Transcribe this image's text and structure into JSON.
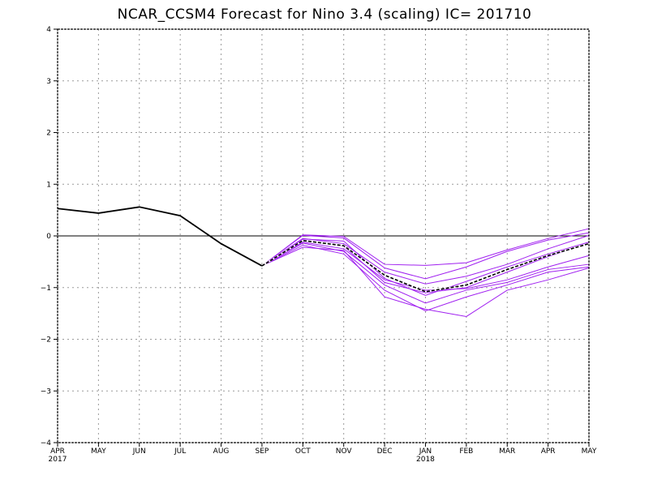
{
  "chart_data": {
    "type": "line",
    "title": "NCAR_CCSM4 Forecast for Nino 3.4 (scaling)  IC= 201710",
    "xlabel": "",
    "ylabel": "",
    "ylim": [
      -4,
      4
    ],
    "yticks": [
      "4",
      "3",
      "2",
      "1",
      "0",
      "−1",
      "−2",
      "−3",
      "−4"
    ],
    "categories": [
      "APR",
      "MAY",
      "JUN",
      "JUL",
      "AUG",
      "SEP",
      "OCT",
      "NOV",
      "DEC",
      "JAN",
      "FEB",
      "MAR",
      "APR",
      "MAY"
    ],
    "year_labels": [
      {
        "index": 0,
        "text": "2017"
      },
      {
        "index": 9,
        "text": "2018"
      }
    ],
    "grid": true,
    "zero_line": true,
    "observed": {
      "start_index": 0,
      "color": "#000000",
      "values": [
        0.53,
        0.44,
        0.56,
        0.39,
        -0.15,
        -0.58
      ]
    },
    "ensemble_mean": {
      "start_index": 5,
      "color": "#000000",
      "style": "dashed",
      "values": [
        -0.58,
        -0.09,
        -0.19,
        -0.76,
        -1.08,
        -0.95,
        -0.65,
        -0.38,
        -0.15
      ]
    },
    "members": {
      "start_index": 5,
      "color": "#a020f0",
      "series": [
        {
          "values": [
            -0.58,
            0.02,
            -0.01,
            -0.55,
            -0.57,
            -0.52,
            -0.27,
            -0.05,
            0.14
          ]
        },
        {
          "values": [
            -0.58,
            0.01,
            -0.04,
            -0.62,
            -0.83,
            -0.6,
            -0.3,
            -0.08,
            0.06
          ]
        },
        {
          "values": [
            -0.58,
            -0.05,
            -0.15,
            -0.7,
            -0.93,
            -0.78,
            -0.55,
            -0.25,
            0.01
          ]
        },
        {
          "values": [
            -0.58,
            -0.06,
            -0.1,
            -0.82,
            -1.15,
            -0.88,
            -0.6,
            -0.35,
            -0.12
          ]
        },
        {
          "values": [
            -0.58,
            -0.08,
            -0.2,
            -0.9,
            -1.1,
            -1.0,
            -0.7,
            -0.4,
            -0.14
          ]
        },
        {
          "values": [
            -0.58,
            -0.12,
            -0.25,
            -0.85,
            -1.05,
            -1.02,
            -0.85,
            -0.6,
            -0.38
          ]
        },
        {
          "values": [
            -0.58,
            -0.14,
            -0.3,
            -0.95,
            -1.3,
            -1.05,
            -0.9,
            -0.65,
            -0.55
          ]
        },
        {
          "values": [
            -0.58,
            -0.18,
            -0.35,
            -1.05,
            -1.45,
            -1.18,
            -0.95,
            -0.7,
            -0.6
          ]
        },
        {
          "values": [
            -0.58,
            -0.22,
            -0.28,
            -1.18,
            -1.42,
            -1.56,
            -1.05,
            -0.85,
            -0.62
          ]
        }
      ]
    }
  }
}
